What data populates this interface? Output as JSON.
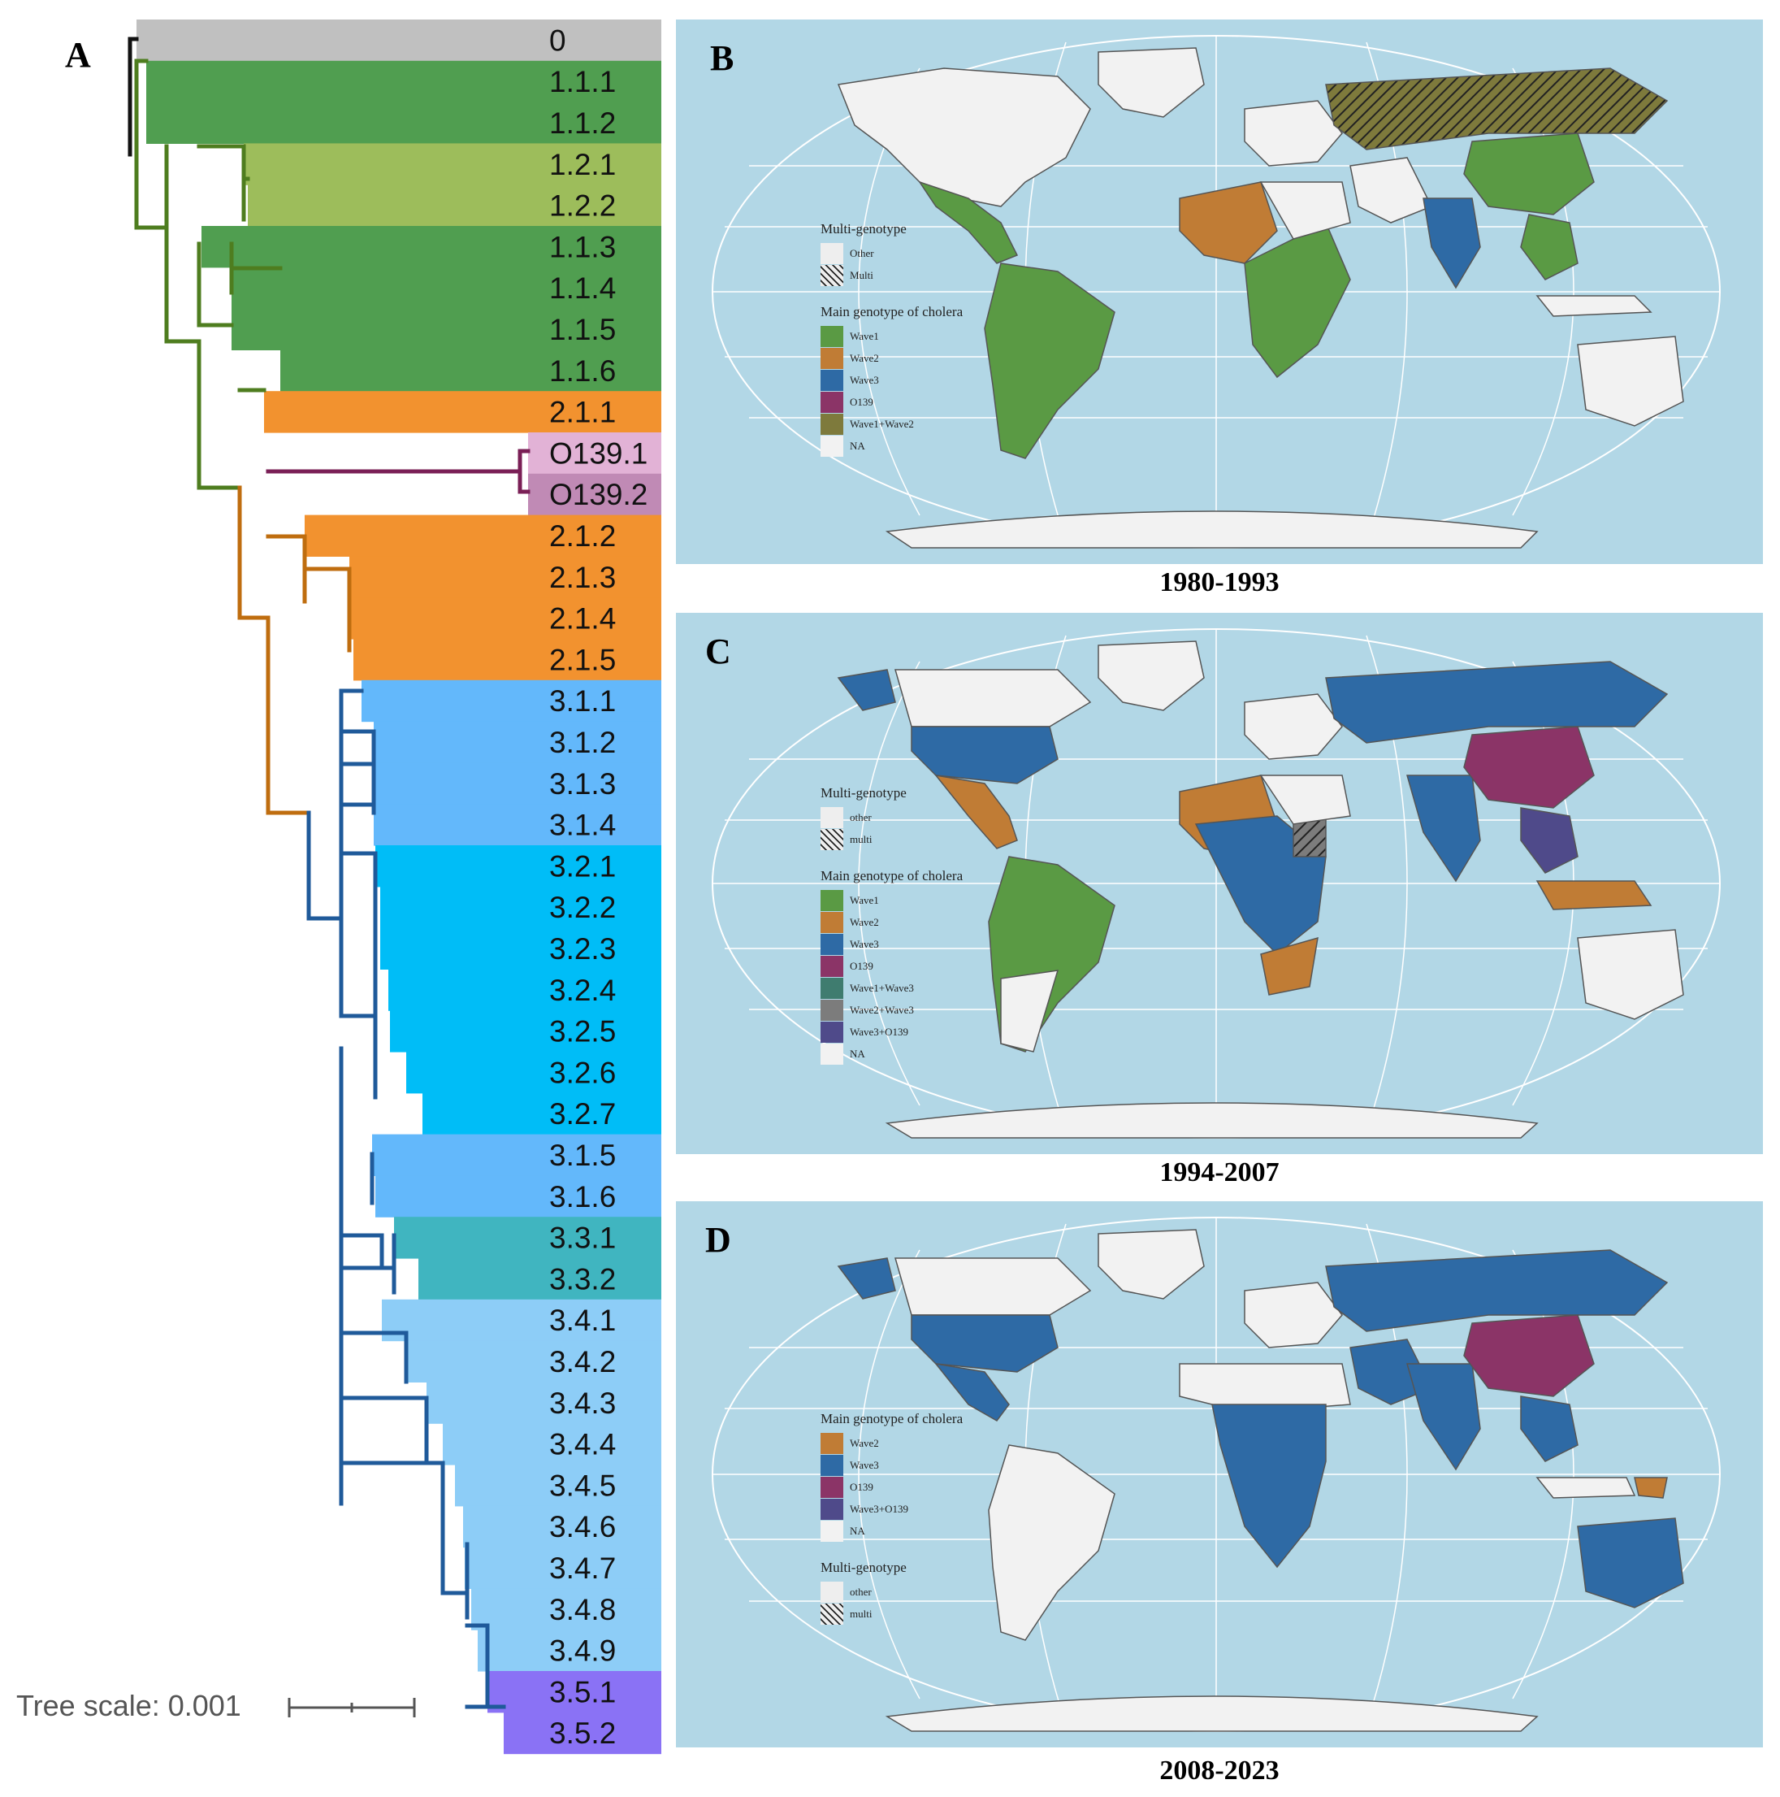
{
  "panel_a": {
    "letter": "A",
    "scale_label": "Tree scale: 0.001",
    "clades": [
      {
        "label": "0",
        "color": "#c0c0c0"
      },
      {
        "label": "1.1.1",
        "color": "#509e50"
      },
      {
        "label": "1.1.2",
        "color": "#509e50"
      },
      {
        "label": "1.2.1",
        "color": "#9dbd5b"
      },
      {
        "label": "1.2.2",
        "color": "#9dbd5b"
      },
      {
        "label": "1.1.3",
        "color": "#509e50"
      },
      {
        "label": "1.1.4",
        "color": "#509e50"
      },
      {
        "label": "1.1.5",
        "color": "#509e50"
      },
      {
        "label": "1.1.6",
        "color": "#509e50"
      },
      {
        "label": "2.1.1",
        "color": "#f2922f"
      },
      {
        "label": "O139.1",
        "color": "#e2b2d6"
      },
      {
        "label": "O139.2",
        "color": "#c08ab5"
      },
      {
        "label": "2.1.2",
        "color": "#f2922f"
      },
      {
        "label": "2.1.3",
        "color": "#f2922f"
      },
      {
        "label": "2.1.4",
        "color": "#f2922f"
      },
      {
        "label": "2.1.5",
        "color": "#f2922f"
      },
      {
        "label": "3.1.1",
        "color": "#63b8fb"
      },
      {
        "label": "3.1.2",
        "color": "#63b8fb"
      },
      {
        "label": "3.1.3",
        "color": "#63b8fb"
      },
      {
        "label": "3.1.4",
        "color": "#63b8fb"
      },
      {
        "label": "3.2.1",
        "color": "#00bdf7"
      },
      {
        "label": "3.2.2",
        "color": "#00bdf7"
      },
      {
        "label": "3.2.3",
        "color": "#00bdf7"
      },
      {
        "label": "3.2.4",
        "color": "#00bdf7"
      },
      {
        "label": "3.2.5",
        "color": "#00bdf7"
      },
      {
        "label": "3.2.6",
        "color": "#00bdf7"
      },
      {
        "label": "3.2.7",
        "color": "#00bdf7"
      },
      {
        "label": "3.1.5",
        "color": "#63b8fb"
      },
      {
        "label": "3.1.6",
        "color": "#63b8fb"
      },
      {
        "label": "3.3.1",
        "color": "#40b5c0"
      },
      {
        "label": "3.3.2",
        "color": "#40b5c0"
      },
      {
        "label": "3.4.1",
        "color": "#8dcdf7"
      },
      {
        "label": "3.4.2",
        "color": "#8dcdf7"
      },
      {
        "label": "3.4.3",
        "color": "#8dcdf7"
      },
      {
        "label": "3.4.4",
        "color": "#8dcdf7"
      },
      {
        "label": "3.4.5",
        "color": "#8dcdf7"
      },
      {
        "label": "3.4.6",
        "color": "#8dcdf7"
      },
      {
        "label": "3.4.7",
        "color": "#8dcdf7"
      },
      {
        "label": "3.4.8",
        "color": "#8dcdf7"
      },
      {
        "label": "3.4.9",
        "color": "#8dcdf7"
      },
      {
        "label": "3.5.1",
        "color": "#8a72f5"
      },
      {
        "label": "3.5.2",
        "color": "#8a72f5"
      }
    ],
    "branch_colors": {
      "root": "#111111",
      "wave1": "#4e7d1f",
      "wave2": "#bf6d0f",
      "o139": "#7a1f56",
      "wave3": "#1f5a9a"
    }
  },
  "colors": {
    "ocean": "#b2d7e6",
    "land_na": "#f2f2f2",
    "wave1": "#5a9a44",
    "wave2": "#c07c35",
    "wave3": "#2e6aa5",
    "o139": "#8b3467",
    "wave1_wave2": "#7e7a3c",
    "wave1_wave3": "#3f7c6f",
    "wave2_wave3": "#7c7c7c",
    "wave3_o139": "#4f4a8a"
  },
  "panel_b": {
    "letter": "B",
    "caption": "1980-1993",
    "multi_title": "Multi-genotype",
    "multi_items": [
      {
        "label": "Other",
        "style": "plain"
      },
      {
        "label": "Multi",
        "style": "hatch"
      }
    ],
    "main_title": "Main genotype of cholera",
    "main_items": [
      {
        "label": "Wave1",
        "color": "#5a9a44"
      },
      {
        "label": "Wave2",
        "color": "#c07c35"
      },
      {
        "label": "Wave3",
        "color": "#2e6aa5"
      },
      {
        "label": "O139",
        "color": "#8b3467"
      },
      {
        "label": "Wave1+Wave2",
        "color": "#7e7a3c"
      },
      {
        "label": "NA",
        "color": "#f2f2f2"
      }
    ]
  },
  "panel_c": {
    "letter": "C",
    "caption": "1994-2007",
    "multi_title": "Multi-genotype",
    "multi_items": [
      {
        "label": "other",
        "style": "plain"
      },
      {
        "label": "multi",
        "style": "hatch"
      }
    ],
    "main_title": "Main genotype of cholera",
    "main_items": [
      {
        "label": "Wave1",
        "color": "#5a9a44"
      },
      {
        "label": "Wave2",
        "color": "#c07c35"
      },
      {
        "label": "Wave3",
        "color": "#2e6aa5"
      },
      {
        "label": "O139",
        "color": "#8b3467"
      },
      {
        "label": "Wave1+Wave3",
        "color": "#3f7c6f"
      },
      {
        "label": "Wave2+Wave3",
        "color": "#7c7c7c"
      },
      {
        "label": "Wave3+O139",
        "color": "#4f4a8a"
      },
      {
        "label": "NA",
        "color": "#f2f2f2"
      }
    ]
  },
  "panel_d": {
    "letter": "D",
    "caption": "2008-2023",
    "main_title": "Main genotype of cholera",
    "main_items": [
      {
        "label": "Wave2",
        "color": "#c07c35"
      },
      {
        "label": "Wave3",
        "color": "#2e6aa5"
      },
      {
        "label": "O139",
        "color": "#8b3467"
      },
      {
        "label": "Wave3+O139",
        "color": "#4f4a8a"
      },
      {
        "label": "NA",
        "color": "#f2f2f2"
      }
    ],
    "multi_title": "Multi-genotype",
    "multi_items": [
      {
        "label": "other",
        "style": "plain"
      },
      {
        "label": "multi",
        "style": "hatch"
      }
    ]
  }
}
